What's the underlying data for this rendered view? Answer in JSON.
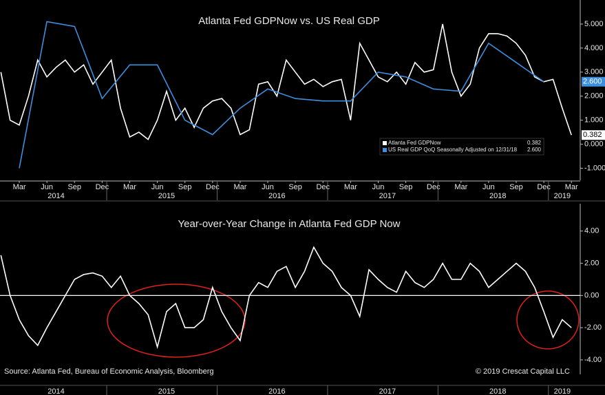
{
  "chart_data": [
    {
      "type": "line",
      "title": "Atlanta Fed GDPNow vs. US Real GDP",
      "x": [
        "2014-01",
        "2014-02",
        "2014-03",
        "2014-04",
        "2014-05",
        "2014-06",
        "2014-07",
        "2014-08",
        "2014-09",
        "2014-10",
        "2014-11",
        "2014-12",
        "2015-01",
        "2015-02",
        "2015-03",
        "2015-04",
        "2015-05",
        "2015-06",
        "2015-07",
        "2015-08",
        "2015-09",
        "2015-10",
        "2015-11",
        "2015-12",
        "2016-01",
        "2016-02",
        "2016-03",
        "2016-04",
        "2016-05",
        "2016-06",
        "2016-07",
        "2016-08",
        "2016-09",
        "2016-10",
        "2016-11",
        "2016-12",
        "2017-01",
        "2017-02",
        "2017-03",
        "2017-04",
        "2017-05",
        "2017-06",
        "2017-07",
        "2017-08",
        "2017-09",
        "2017-10",
        "2017-11",
        "2017-12",
        "2018-01",
        "2018-02",
        "2018-03",
        "2018-04",
        "2018-05",
        "2018-06",
        "2018-07",
        "2018-08",
        "2018-09",
        "2018-10",
        "2018-11",
        "2018-12",
        "2019-01",
        "2019-02",
        "2019-03"
      ],
      "series": [
        {
          "name": "Atlanta Fed GDPNow",
          "color": "#ffffff",
          "values": [
            3.0,
            1.0,
            0.8,
            2.0,
            3.5,
            2.8,
            3.2,
            3.5,
            3.0,
            3.3,
            2.5,
            3.0,
            3.5,
            1.5,
            0.3,
            0.5,
            0.2,
            1.0,
            2.2,
            1.0,
            1.5,
            0.7,
            1.5,
            1.8,
            1.9,
            1.5,
            0.4,
            0.6,
            2.5,
            2.6,
            2.0,
            3.5,
            3.0,
            2.5,
            2.7,
            2.4,
            2.6,
            2.7,
            1.0,
            4.2,
            3.5,
            2.8,
            2.6,
            3.0,
            2.5,
            3.4,
            3.0,
            3.1,
            5.0,
            3.0,
            2.0,
            2.5,
            4.0,
            4.6,
            4.6,
            4.5,
            4.2,
            3.7,
            2.8,
            2.6,
            2.7,
            1.5,
            0.382
          ],
          "value_labels": [
            null,
            null,
            null,
            null,
            null,
            null,
            null,
            null,
            null,
            null,
            null,
            null,
            null,
            null,
            null,
            null,
            null,
            null,
            null,
            null,
            null,
            null,
            null,
            null,
            null,
            null,
            null,
            null,
            null,
            null,
            null,
            null,
            null,
            null,
            null,
            null,
            null,
            null,
            null,
            null,
            null,
            null,
            null,
            null,
            null,
            null,
            null,
            null,
            null,
            null,
            null,
            null,
            null,
            null,
            null,
            null,
            null,
            null,
            null,
            null,
            null,
            null,
            "0.382"
          ]
        },
        {
          "name": "US Real GDP QoQ Seasonally Adjusted on 12/31/18",
          "color": "#3d8fe0",
          "x": [
            "2014-03",
            "2014-06",
            "2014-09",
            "2014-12",
            "2015-03",
            "2015-06",
            "2015-09",
            "2015-12",
            "2016-03",
            "2016-06",
            "2016-09",
            "2016-12",
            "2017-03",
            "2017-06",
            "2017-09",
            "2017-12",
            "2018-03",
            "2018-06",
            "2018-09",
            "2018-12"
          ],
          "values": [
            -1.0,
            5.1,
            4.9,
            1.9,
            3.3,
            3.3,
            1.0,
            0.4,
            1.5,
            2.3,
            1.9,
            1.8,
            1.8,
            3.0,
            2.8,
            2.3,
            2.2,
            4.2,
            3.4,
            2.6
          ],
          "value_labels": [
            null,
            null,
            null,
            null,
            null,
            null,
            null,
            null,
            null,
            null,
            null,
            null,
            null,
            null,
            null,
            null,
            null,
            null,
            null,
            "2.600"
          ]
        }
      ],
      "ylim": [
        -1.5,
        6
      ],
      "yticks": [
        {
          "value": 5,
          "label": "5.000"
        },
        {
          "value": 4,
          "label": "4.000"
        },
        {
          "value": 3,
          "label": "3.000"
        },
        {
          "value": 2,
          "label": "2.000"
        },
        {
          "value": 1,
          "label": "1.000"
        },
        {
          "value": 0,
          "label": "0.000"
        },
        {
          "value": -1,
          "label": "-1.000"
        }
      ],
      "xticks": [
        {
          "value": "2014-03",
          "label": "Mar"
        },
        {
          "value": "2014-06",
          "label": "Jun"
        },
        {
          "value": "2014-09",
          "label": "Sep"
        },
        {
          "value": "2014-12",
          "label": "Dec"
        },
        {
          "value": "2015-03",
          "label": "Mar"
        },
        {
          "value": "2015-06",
          "label": "Jun"
        },
        {
          "value": "2015-09",
          "label": "Sep"
        },
        {
          "value": "2015-12",
          "label": "Dec"
        },
        {
          "value": "2016-03",
          "label": "Mar"
        },
        {
          "value": "2016-06",
          "label": "Jun"
        },
        {
          "value": "2016-09",
          "label": "Sep"
        },
        {
          "value": "2016-12",
          "label": "Dec"
        },
        {
          "value": "2017-03",
          "label": "Mar"
        },
        {
          "value": "2017-06",
          "label": "Jun"
        },
        {
          "value": "2017-09",
          "label": "Sep"
        },
        {
          "value": "2017-12",
          "label": "Dec"
        },
        {
          "value": "2018-03",
          "label": "Mar"
        },
        {
          "value": "2018-06",
          "label": "Jun"
        },
        {
          "value": "2018-09",
          "label": "Sep"
        },
        {
          "value": "2018-12",
          "label": "Dec"
        },
        {
          "value": "2019-03",
          "label": "Mar"
        }
      ],
      "year_ticks": [
        {
          "value": "2014-07",
          "label": "2014"
        },
        {
          "value": "2015-07",
          "label": "2015"
        },
        {
          "value": "2016-07",
          "label": "2016"
        },
        {
          "value": "2017-07",
          "label": "2017"
        },
        {
          "value": "2018-07",
          "label": "2018"
        },
        {
          "value": "2019-02",
          "label": "2019"
        }
      ]
    },
    {
      "type": "line",
      "title": "Year-over-Year Change in Atlanta Fed GDP Now",
      "x": [
        "2014-01",
        "2014-02",
        "2014-03",
        "2014-04",
        "2014-05",
        "2014-06",
        "2014-07",
        "2014-08",
        "2014-09",
        "2014-10",
        "2014-11",
        "2014-12",
        "2015-01",
        "2015-02",
        "2015-03",
        "2015-04",
        "2015-05",
        "2015-06",
        "2015-07",
        "2015-08",
        "2015-09",
        "2015-10",
        "2015-11",
        "2015-12",
        "2016-01",
        "2016-02",
        "2016-03",
        "2016-04",
        "2016-05",
        "2016-06",
        "2016-07",
        "2016-08",
        "2016-09",
        "2016-10",
        "2016-11",
        "2016-12",
        "2017-01",
        "2017-02",
        "2017-03",
        "2017-04",
        "2017-05",
        "2017-06",
        "2017-07",
        "2017-08",
        "2017-09",
        "2017-10",
        "2017-11",
        "2017-12",
        "2018-01",
        "2018-02",
        "2018-03",
        "2018-04",
        "2018-05",
        "2018-06",
        "2018-07",
        "2018-08",
        "2018-09",
        "2018-10",
        "2018-11",
        "2018-12",
        "2019-01",
        "2019-02",
        "2019-03"
      ],
      "series": [
        {
          "color": "#ffffff",
          "values": [
            2.5,
            0.0,
            -1.5,
            -2.5,
            -3.1,
            -2.0,
            -1.0,
            0.0,
            1.0,
            1.3,
            1.4,
            1.2,
            0.5,
            1.2,
            0.0,
            -0.5,
            -1.2,
            -3.2,
            -1.0,
            -0.5,
            -2.0,
            -2.0,
            -1.5,
            0.5,
            -1.0,
            -2.0,
            -2.8,
            0.0,
            0.8,
            0.5,
            1.5,
            1.8,
            0.5,
            1.5,
            3.0,
            2.0,
            1.5,
            0.5,
            0.0,
            -1.3,
            1.6,
            1.0,
            0.5,
            0.2,
            1.5,
            0.8,
            0.5,
            1.0,
            2.0,
            1.0,
            1.0,
            2.0,
            1.5,
            0.5,
            1.0,
            1.5,
            2.0,
            1.5,
            0.5,
            -1.0,
            -2.6,
            -1.5,
            -2.0
          ]
        }
      ],
      "reference_line": 0,
      "ylim": [
        -4.9,
        5.7
      ],
      "yticks": [
        {
          "value": 4,
          "label": "4.00"
        },
        {
          "value": 2,
          "label": "2.00"
        },
        {
          "value": 0,
          "label": "0.00"
        },
        {
          "value": -2,
          "label": "-2.00"
        },
        {
          "value": -4,
          "label": "-4.00"
        }
      ],
      "xticks": [
        {
          "value": "2014-07",
          "label": "2014"
        },
        {
          "value": "2015-07",
          "label": "2015"
        },
        {
          "value": "2016-07",
          "label": "2016"
        },
        {
          "value": "2017-07",
          "label": "2017"
        },
        {
          "value": "2018-07",
          "label": "2018"
        },
        {
          "value": "2019-02",
          "label": "2019"
        }
      ],
      "source": "Source: Atlanta Fed, Bureau of Economic Analysis, Bloomberg",
      "copyright": "© 2019 Crescat Capital LLC"
    }
  ]
}
